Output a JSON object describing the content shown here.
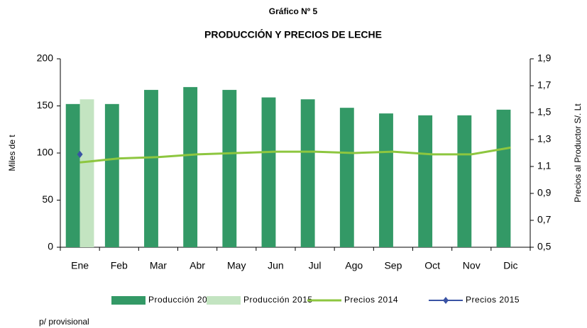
{
  "chart_data": {
    "type": "bar",
    "title": "Gráfico Nº 5",
    "subtitle": "PRODUCCIÓN Y PRECIOS DE LECHE",
    "y_label": "Miles de t",
    "y2_label": "Precios al Productor S/. Lt",
    "footnote": "p/ provisional",
    "categories": [
      "Ene",
      "Feb",
      "Mar",
      "Abr",
      "May",
      "Jun",
      "Jul",
      "Ago",
      "Sep",
      "Oct",
      "Nov",
      "Dic"
    ],
    "ylim": [
      0,
      200
    ],
    "yticks": [
      0,
      50,
      100,
      150,
      200
    ],
    "y2lim": [
      0.5,
      1.9
    ],
    "y2ticks": [
      {
        "value": 0.5,
        "label": "0,5"
      },
      {
        "value": 0.7,
        "label": "0,7"
      },
      {
        "value": 0.9,
        "label": "0,9"
      },
      {
        "value": 1.1,
        "label": "1,1"
      },
      {
        "value": 1.3,
        "label": "1,3"
      },
      {
        "value": 1.5,
        "label": "1,5"
      },
      {
        "value": 1.7,
        "label": "1,7"
      },
      {
        "value": 1.9,
        "label": "1,9"
      }
    ],
    "series": [
      {
        "name": "Producción 2014",
        "type": "bar",
        "color": "#339966",
        "values": [
          152,
          152,
          167,
          170,
          167,
          159,
          157,
          148,
          142,
          140,
          140,
          146
        ]
      },
      {
        "name": "Producción 2015",
        "type": "bar",
        "color": "#c3e4c1",
        "values": [
          157,
          null,
          null,
          null,
          null,
          null,
          null,
          null,
          null,
          null,
          null,
          null
        ]
      },
      {
        "name": "Precios 2014",
        "type": "line",
        "axis": "y2",
        "color": "#8dc63f",
        "values": [
          1.13,
          1.16,
          1.17,
          1.19,
          1.2,
          1.21,
          1.21,
          1.2,
          1.21,
          1.19,
          1.19,
          1.24
        ]
      },
      {
        "name": "Precios 2015",
        "type": "line",
        "axis": "y2",
        "color": "#3a53a4",
        "marker": "diamond",
        "values": [
          1.19,
          null,
          null,
          null,
          null,
          null,
          null,
          null,
          null,
          null,
          null,
          null
        ]
      }
    ]
  }
}
